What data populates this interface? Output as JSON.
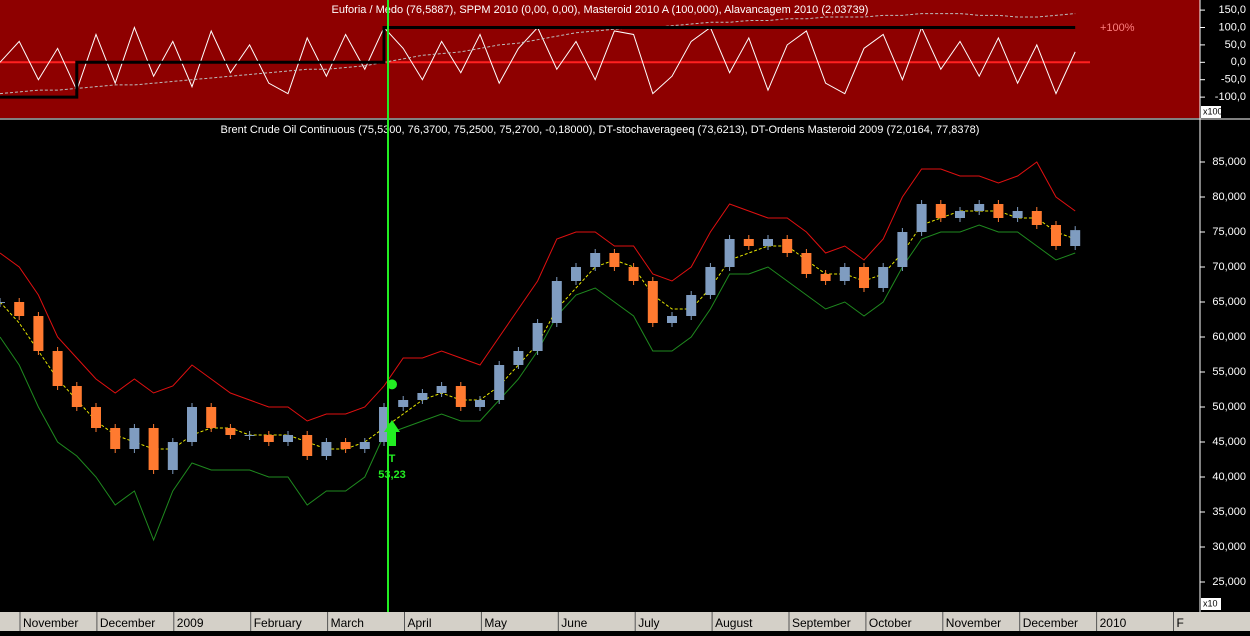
{
  "chart_data": [
    {
      "type": "line",
      "title": "Euforia / Medo (76,5887), SPPM 2010 (0,00, 0,00), Masteroid 2010 A (100,000), Alavancagem 2010 (2,03739)",
      "annotation": "+100%",
      "multiplier": "x100",
      "background": "#8e0000",
      "ylim": [
        -160,
        179
      ],
      "yticks": [
        {
          "value": 150,
          "label": "150,0"
        },
        {
          "value": 100,
          "label": "100,0"
        },
        {
          "value": 50,
          "label": "50,0"
        },
        {
          "value": 0,
          "label": "0,0"
        },
        {
          "value": -50,
          "label": "-50,0"
        },
        {
          "value": -100,
          "label": "-100,0"
        }
      ],
      "series": [
        {
          "color": "#ffffff",
          "values": [
            0,
            60,
            -50,
            40,
            -80,
            80,
            -60,
            100,
            -40,
            60,
            -70,
            90,
            -30,
            50,
            -60,
            -90,
            70,
            -40,
            80,
            -20,
            100,
            40,
            -50,
            60,
            -30,
            80,
            -60,
            40,
            100,
            -20,
            60,
            -50,
            90,
            80,
            -90,
            -40,
            60,
            100,
            -30,
            70,
            -80,
            50,
            90,
            -60,
            -90,
            40,
            80,
            -50,
            100,
            -20,
            60,
            -40,
            70,
            -60,
            50,
            -90,
            30
          ]
        },
        {
          "color": "#bbbbbb",
          "dashed": true,
          "values": [
            -90,
            -85,
            -80,
            -80,
            -75,
            -70,
            -65,
            -65,
            -60,
            -55,
            -50,
            -45,
            -40,
            -35,
            -30,
            -25,
            -20,
            -20,
            -15,
            -10,
            0,
            10,
            20,
            25,
            30,
            40,
            50,
            55,
            65,
            75,
            85,
            90,
            95,
            100,
            100,
            105,
            110,
            115,
            115,
            120,
            120,
            125,
            125,
            130,
            130,
            130,
            135,
            135,
            140,
            140,
            140,
            135,
            135,
            130,
            130,
            135,
            140
          ]
        },
        {
          "color": "#000000",
          "width": 3,
          "step": true,
          "values": [
            -100,
            -100,
            -100,
            -100,
            0,
            0,
            0,
            0,
            0,
            0,
            0,
            0,
            0,
            0,
            0,
            0,
            0,
            0,
            0,
            0,
            100,
            100,
            100,
            100,
            100,
            100,
            100,
            100,
            100,
            100,
            100,
            100,
            100,
            100,
            100,
            100,
            100,
            100,
            100,
            100,
            100,
            100,
            100,
            100,
            100,
            100,
            100,
            100,
            100,
            100,
            100,
            100,
            100,
            100,
            100,
            100,
            100
          ]
        }
      ],
      "zero_line_color": "#ff2020"
    },
    {
      "type": "candlestick",
      "title": "Brent Crude Oil Continuous (75,5300, 76,3700, 75,2500, 75,2700, -0,18000), DT-stochaverageeq (73,6213), DT-Ordens Masteroid 2009 (72,0164, 77,8378)",
      "multiplier": "x10",
      "ylim": [
        21,
        91
      ],
      "yticks": [
        {
          "value": 85,
          "label": "85,000"
        },
        {
          "value": 80,
          "label": "80,000"
        },
        {
          "value": 75,
          "label": "75,000"
        },
        {
          "value": 70,
          "label": "70,000"
        },
        {
          "value": 65,
          "label": "65,000"
        },
        {
          "value": 60,
          "label": "60,000"
        },
        {
          "value": 55,
          "label": "55,000"
        },
        {
          "value": 50,
          "label": "50,000"
        },
        {
          "value": 45,
          "label": "45,000"
        },
        {
          "value": 40,
          "label": "40,000"
        },
        {
          "value": 35,
          "label": "35,000"
        },
        {
          "value": 30,
          "label": "30,000"
        },
        {
          "value": 25,
          "label": "25,000"
        }
      ],
      "x_labels": [
        "November",
        "December",
        "2009",
        "February",
        "March",
        "April",
        "May",
        "June",
        "July",
        "August",
        "September",
        "October",
        "November",
        "December",
        "2010",
        "F"
      ],
      "close": [
        65,
        63,
        58,
        53,
        50,
        47,
        44,
        47,
        41,
        45,
        50,
        47,
        46,
        46,
        45,
        46,
        43,
        45,
        44,
        45,
        50,
        51,
        52,
        53,
        50,
        51,
        56,
        58,
        62,
        68,
        70,
        72,
        70,
        68,
        62,
        63,
        66,
        70,
        74,
        73,
        74,
        72,
        69,
        68,
        70,
        67,
        70,
        75,
        79,
        77,
        78,
        79,
        77,
        78,
        76,
        73,
        75.27
      ],
      "up_color": "#7f9cc0",
      "down_color": "#ff7a30",
      "series": [
        {
          "color": "#e01010",
          "values": [
            72,
            70,
            66,
            60,
            57,
            54,
            52,
            54,
            52,
            53,
            56,
            54,
            52,
            51,
            50,
            50,
            48,
            49,
            49,
            50,
            53,
            57,
            57,
            58,
            57,
            56,
            60,
            64,
            68,
            74,
            75,
            75,
            73,
            73,
            69,
            68,
            70,
            75,
            79,
            78,
            77,
            77,
            75,
            72,
            73,
            71,
            74,
            80,
            84,
            84,
            83,
            83,
            82,
            83,
            85,
            80,
            78
          ]
        },
        {
          "color": "#1f8a1f",
          "values": [
            60,
            56,
            50,
            45,
            43,
            40,
            36,
            38,
            31,
            38,
            42,
            41,
            41,
            41,
            40,
            40,
            36,
            38,
            38,
            40,
            46,
            47,
            48,
            49,
            48,
            48,
            51,
            54,
            58,
            63,
            66,
            67,
            65,
            63,
            58,
            58,
            60,
            64,
            69,
            69,
            70,
            68,
            66,
            64,
            65,
            63,
            65,
            70,
            74,
            75,
            75,
            76,
            75,
            75,
            73,
            71,
            72
          ]
        },
        {
          "color": "#e8e800",
          "dashed": true,
          "values": [
            65,
            62,
            58,
            54,
            51,
            48,
            46,
            45,
            44,
            44,
            46,
            47,
            47,
            46,
            46,
            46,
            45,
            44,
            44,
            45,
            47,
            49,
            51,
            52,
            51,
            51,
            53,
            56,
            59,
            64,
            67,
            70,
            71,
            70,
            66,
            64,
            64,
            67,
            71,
            72,
            73,
            73,
            71,
            69,
            69,
            68,
            69,
            72,
            76,
            77,
            78,
            78,
            78,
            77,
            77,
            75,
            74
          ]
        }
      ],
      "signal": {
        "label": "T",
        "value": 53.23,
        "value_label": "53,23",
        "color": "#22ee22"
      }
    }
  ]
}
